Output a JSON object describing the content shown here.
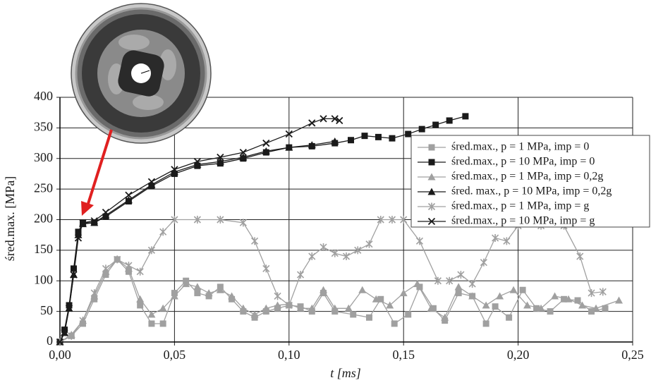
{
  "chart_data": {
    "type": "line",
    "xlabel": "t [ms]",
    "ylabel": "śred.max. [MPa]",
    "xlim": [
      0,
      0.25
    ],
    "ylim": [
      0,
      400
    ],
    "xticks": [
      {
        "value": 0,
        "label": "0,00"
      },
      {
        "value": 0.05,
        "label": "0,05"
      },
      {
        "value": 0.1,
        "label": "0,10"
      },
      {
        "value": 0.15,
        "label": "0,15"
      },
      {
        "value": 0.2,
        "label": "0,20"
      },
      {
        "value": 0.25,
        "label": "0,25"
      }
    ],
    "yticks": [
      0,
      50,
      100,
      150,
      200,
      250,
      300,
      350,
      400
    ],
    "grid": true,
    "legend": "right",
    "series": [
      {
        "name": "śred.max., p = 1 MPa, imp = 0",
        "color": "#a0a0a0",
        "marker": "square",
        "x": [
          0,
          0.005,
          0.01,
          0.015,
          0.02,
          0.025,
          0.03,
          0.035,
          0.04,
          0.045,
          0.05,
          0.055,
          0.06,
          0.065,
          0.07,
          0.075,
          0.08,
          0.085,
          0.09,
          0.095,
          0.1,
          0.105,
          0.11,
          0.115,
          0.12,
          0.128,
          0.135,
          0.14,
          0.146,
          0.152,
          0.157,
          0.163,
          0.168,
          0.174,
          0.18,
          0.186,
          0.19,
          0.196,
          0.202,
          0.208,
          0.214,
          0.22,
          0.226,
          0.232,
          0.238
        ],
        "values": [
          0,
          10,
          30,
          70,
          110,
          135,
          115,
          60,
          30,
          30,
          80,
          100,
          80,
          75,
          90,
          70,
          50,
          40,
          50,
          55,
          60,
          58,
          50,
          80,
          50,
          45,
          40,
          70,
          30,
          45,
          90,
          55,
          35,
          80,
          75,
          30,
          58,
          40,
          85,
          55,
          50,
          70,
          68,
          50,
          55
        ]
      },
      {
        "name": "śred.max., p = 10 MPa, imp = 0",
        "color": "#1a1a1a",
        "marker": "square",
        "x": [
          0,
          0.002,
          0.004,
          0.006,
          0.008,
          0.01,
          0.015,
          0.02,
          0.03,
          0.04,
          0.05,
          0.06,
          0.07,
          0.08,
          0.09,
          0.1,
          0.11,
          0.12,
          0.127,
          0.133,
          0.139,
          0.145,
          0.152,
          0.158,
          0.164,
          0.17,
          0.177
        ],
        "values": [
          0,
          20,
          60,
          120,
          180,
          195,
          195,
          205,
          230,
          255,
          275,
          288,
          292,
          300,
          310,
          318,
          320,
          325,
          330,
          337,
          335,
          333,
          340,
          348,
          355,
          362,
          369
        ]
      },
      {
        "name": "śred.max., p = 1 MPa, imp = 0,2g",
        "color": "#a0a0a0",
        "marker": "triangle",
        "x": [
          0,
          0.005,
          0.01,
          0.015,
          0.02,
          0.025,
          0.03,
          0.035,
          0.04,
          0.045,
          0.05,
          0.055,
          0.06,
          0.065,
          0.07,
          0.075,
          0.08,
          0.085,
          0.09,
          0.095,
          0.1,
          0.105,
          0.11,
          0.115,
          0.12,
          0.126,
          0.132,
          0.138,
          0.144,
          0.15,
          0.156,
          0.162,
          0.168,
          0.174,
          0.18,
          0.186,
          0.192,
          0.198,
          0.204,
          0.21,
          0.216,
          0.222,
          0.228,
          0.234,
          0.244
        ],
        "values": [
          0,
          12,
          35,
          75,
          115,
          135,
          120,
          70,
          45,
          55,
          75,
          95,
          90,
          80,
          85,
          75,
          55,
          45,
          55,
          60,
          62,
          55,
          55,
          85,
          55,
          55,
          85,
          70,
          60,
          80,
          95,
          55,
          40,
          90,
          75,
          60,
          75,
          85,
          60,
          55,
          75,
          70,
          60,
          55,
          68
        ]
      },
      {
        "name": "śred. max., p = 10 MPa, imp = 0,2g",
        "color": "#1a1a1a",
        "marker": "triangle",
        "x": [
          0,
          0.002,
          0.004,
          0.006,
          0.008,
          0.01,
          0.015,
          0.02,
          0.03,
          0.04,
          0.05,
          0.06,
          0.07,
          0.08,
          0.09,
          0.1,
          0.11,
          0.12
        ],
        "values": [
          0,
          15,
          55,
          110,
          175,
          193,
          195,
          207,
          232,
          257,
          278,
          290,
          295,
          302,
          312,
          318,
          322,
          328
        ]
      },
      {
        "name": "śred.max., p = 1 MPa, imp = g",
        "color": "#a0a0a0",
        "marker": "star",
        "x": [
          0,
          0.005,
          0.01,
          0.015,
          0.02,
          0.025,
          0.03,
          0.035,
          0.04,
          0.045,
          0.05,
          0.06,
          0.07,
          0.08,
          0.085,
          0.09,
          0.095,
          0.1,
          0.105,
          0.11,
          0.115,
          0.12,
          0.125,
          0.13,
          0.135,
          0.14,
          0.145,
          0.15,
          0.157,
          0.165,
          0.17,
          0.175,
          0.18,
          0.185,
          0.19,
          0.195,
          0.2,
          0.21,
          0.22,
          0.227,
          0.232,
          0.237
        ],
        "values": [
          0,
          10,
          35,
          80,
          120,
          135,
          125,
          115,
          150,
          180,
          200,
          200,
          200,
          195,
          165,
          120,
          75,
          60,
          110,
          140,
          155,
          145,
          140,
          150,
          160,
          200,
          200,
          200,
          165,
          100,
          100,
          110,
          95,
          130,
          170,
          165,
          190,
          190,
          190,
          140,
          80,
          82
        ]
      },
      {
        "name": "śred.max., p = 10 MPa, imp = g",
        "color": "#1a1a1a",
        "marker": "x",
        "x": [
          0,
          0.002,
          0.004,
          0.006,
          0.008,
          0.01,
          0.015,
          0.02,
          0.03,
          0.04,
          0.05,
          0.06,
          0.07,
          0.08,
          0.09,
          0.1,
          0.11,
          0.115,
          0.12,
          0.122
        ],
        "values": [
          0,
          15,
          55,
          110,
          170,
          195,
          198,
          212,
          240,
          262,
          282,
          295,
          302,
          310,
          325,
          340,
          358,
          365,
          365,
          362
        ]
      }
    ]
  }
}
